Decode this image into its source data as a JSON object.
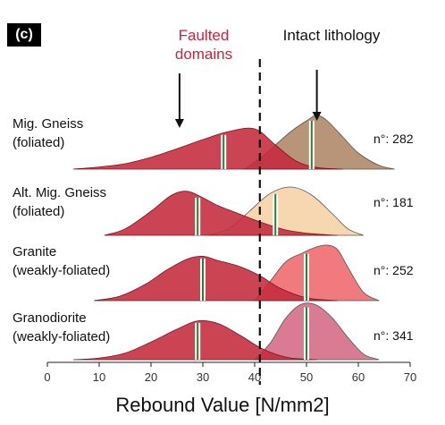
{
  "panel_label": "(c)",
  "annotations": {
    "faulted": [
      "Faulted",
      "domains"
    ],
    "intact": "Intact lithology"
  },
  "chart_data": {
    "type": "area",
    "xlabel": "Rebound Value [N/mm2]",
    "xlim": [
      0,
      70
    ],
    "xticks": [
      0,
      10,
      20,
      30,
      40,
      50,
      60,
      70
    ],
    "xtick_labels": [
      "0",
      "10",
      "20",
      "30",
      "40",
      "50",
      "60",
      "70"
    ],
    "separator_x": 41,
    "grid": false,
    "colors": {
      "faulted": "#c42a3c",
      "intact": [
        "#b89478",
        "#f7d7b0",
        "#f17a7e",
        "#d97c93"
      ],
      "median_line": "#2e7d32"
    },
    "rows": [
      {
        "label": [
          "Mig. Gneiss",
          "(foliated)"
        ],
        "count": "n°: 282",
        "faulted": {
          "median": 34,
          "x": [
            5,
            10,
            15,
            20,
            25,
            30,
            35,
            40,
            44,
            48,
            52,
            57
          ],
          "y": [
            0,
            0.04,
            0.1,
            0.22,
            0.38,
            0.55,
            0.7,
            0.75,
            0.45,
            0.15,
            0.03,
            0
          ]
        },
        "intact": {
          "median": 51,
          "x": [
            38,
            41,
            44,
            47,
            50,
            52,
            54,
            57,
            60,
            64,
            67
          ],
          "y": [
            0,
            0.2,
            0.45,
            0.7,
            0.9,
            1,
            0.9,
            0.6,
            0.3,
            0.07,
            0
          ]
        }
      },
      {
        "label": [
          "Alt. Mig. Gneiss",
          "(foliated)"
        ],
        "count": "n°: 181",
        "faulted": {
          "median": 29,
          "x": [
            11,
            15,
            20,
            24,
            27,
            30,
            33,
            37,
            41,
            46,
            51,
            56
          ],
          "y": [
            0,
            0.12,
            0.45,
            0.75,
            0.82,
            0.7,
            0.55,
            0.4,
            0.25,
            0.1,
            0.03,
            0
          ]
        },
        "intact": {
          "median": 44,
          "x": [
            31,
            35,
            39,
            43,
            47,
            51,
            55,
            58,
            61
          ],
          "y": [
            0,
            0.12,
            0.45,
            0.78,
            0.9,
            0.75,
            0.4,
            0.12,
            0
          ]
        }
      },
      {
        "label": [
          "Granite",
          "(weakly-foliated)"
        ],
        "count": "n°: 252",
        "faulted": {
          "median": 30,
          "x": [
            9,
            14,
            19,
            23,
            27,
            30,
            33,
            37,
            41,
            45,
            50,
            56
          ],
          "y": [
            0,
            0.08,
            0.3,
            0.55,
            0.75,
            0.8,
            0.72,
            0.62,
            0.45,
            0.22,
            0.05,
            0
          ]
        },
        "intact": {
          "median": 50,
          "x": [
            40,
            43,
            46,
            49,
            52,
            54,
            56,
            58,
            61,
            64
          ],
          "y": [
            0,
            0.35,
            0.7,
            0.85,
            0.97,
            1,
            0.92,
            0.6,
            0.15,
            0
          ]
        }
      },
      {
        "label": [
          "Granodiorite",
          "(weakly-foliated)"
        ],
        "count": "n°: 341",
        "faulted": {
          "median": 29,
          "x": [
            5,
            10,
            15,
            20,
            25,
            29,
            33,
            37,
            41,
            44,
            47,
            52
          ],
          "y": [
            0,
            0.03,
            0.12,
            0.32,
            0.55,
            0.7,
            0.65,
            0.45,
            0.22,
            0.1,
            0.03,
            0
          ]
        },
        "intact": {
          "median": 50,
          "x": [
            40,
            43,
            46,
            49,
            52,
            55,
            58,
            61,
            64
          ],
          "y": [
            0,
            0.3,
            0.75,
            1,
            0.98,
            0.75,
            0.4,
            0.1,
            0
          ]
        }
      }
    ]
  }
}
